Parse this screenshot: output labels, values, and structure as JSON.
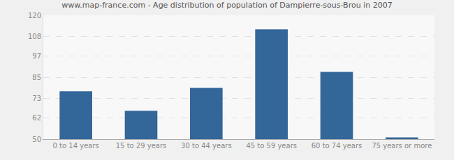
{
  "chart_data": {
    "type": "bar",
    "title": "www.map-france.com - Age distribution of population of Dampierre-sous-Brou in 2007",
    "categories": [
      "0 to 14 years",
      "15 to 29 years",
      "30 to 44 years",
      "45 to 59 years",
      "60 to 74 years",
      "75 years or more"
    ],
    "values": [
      77,
      66,
      79,
      112,
      88,
      51
    ],
    "color": "#336699",
    "ylim": [
      50,
      120
    ],
    "yticks": [
      50,
      62,
      73,
      85,
      97,
      108,
      120
    ],
    "grid": true
  }
}
